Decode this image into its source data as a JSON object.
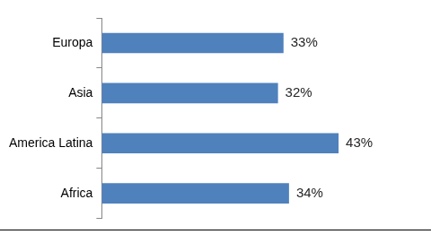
{
  "chart_data": {
    "type": "bar",
    "orientation": "horizontal",
    "categories": [
      "Europa",
      "Asia",
      "America Latina",
      "Africa"
    ],
    "values": [
      33,
      32,
      43,
      34
    ],
    "value_labels": [
      "33%",
      "32%",
      "43%",
      "34%"
    ],
    "data_labels": true,
    "color": "#4f81bd",
    "grid": false,
    "tick_labels": "y"
  }
}
